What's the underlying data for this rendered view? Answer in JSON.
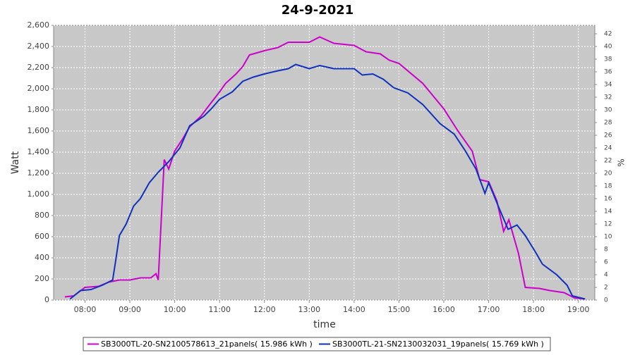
{
  "chart_data": {
    "type": "line",
    "title": "24-9-2021",
    "xlabel": "time",
    "ylabel": "Watt",
    "y2label": "%",
    "xlim": [
      "07:18",
      "19:22"
    ],
    "xticks": [
      "08:00",
      "09:00",
      "10:00",
      "11:00",
      "12:00",
      "13:00",
      "14:00",
      "15:00",
      "16:00",
      "17:00",
      "18:00",
      "19:00"
    ],
    "ylim": [
      0,
      2600
    ],
    "yticks": [
      0,
      200,
      400,
      600,
      800,
      {
        "value": 1000,
        "label": "1,000"
      },
      {
        "value": 1200,
        "label": "1,200"
      },
      {
        "value": 1400,
        "label": "1,400"
      },
      {
        "value": 1600,
        "label": "1,600"
      },
      {
        "value": 1800,
        "label": "1,800"
      },
      {
        "value": 2000,
        "label": "2,000"
      },
      {
        "value": 2200,
        "label": "2,200"
      },
      {
        "value": 2400,
        "label": "2,400"
      },
      {
        "value": 2600,
        "label": "2,600"
      }
    ],
    "y2lim": [
      0,
      43.33
    ],
    "y2ticks": [
      0,
      2,
      4,
      6,
      8,
      10,
      12,
      14,
      16,
      18,
      20,
      22,
      24,
      26,
      28,
      30,
      32,
      34,
      36,
      38,
      40,
      42
    ],
    "grid": true,
    "legend": "bottom",
    "series": [
      {
        "name": "SB3000TL-20-SN2100578613_21panels( 15.986 kWh )",
        "color": "#cc00cc",
        "x": [
          "07:33",
          "07:45",
          "08:00",
          "08:18",
          "08:32",
          "08:46",
          "09:00",
          "09:14",
          "09:28",
          "09:35",
          "09:38",
          "09:46",
          "09:52",
          "10:00",
          "10:11",
          "10:20",
          "10:35",
          "10:49",
          "11:00",
          "11:08",
          "11:22",
          "11:31",
          "11:40",
          "12:00",
          "12:18",
          "12:32",
          "13:00",
          "13:14",
          "13:33",
          "14:00",
          "14:16",
          "14:35",
          "14:47",
          "15:00",
          "15:32",
          "16:00",
          "16:19",
          "16:38",
          "16:48",
          "17:00",
          "17:11",
          "17:20",
          "17:27",
          "17:40",
          "17:49",
          "18:08",
          "18:22",
          "18:41",
          "18:55",
          "19:09"
        ],
        "values": [
          30,
          40,
          120,
          130,
          170,
          190,
          190,
          210,
          210,
          250,
          190,
          1330,
          1240,
          1410,
          1530,
          1640,
          1740,
          1870,
          1970,
          2050,
          2140,
          2210,
          2320,
          2360,
          2390,
          2440,
          2440,
          2490,
          2430,
          2410,
          2350,
          2330,
          2270,
          2240,
          2050,
          1810,
          1600,
          1410,
          1140,
          1120,
          940,
          650,
          760,
          440,
          120,
          110,
          90,
          70,
          20,
          10
        ]
      },
      {
        "name": "SB3000TL-21-SN2130032031_19panels( 15.769 kWh )",
        "color": "#1030c0",
        "x": [
          "07:40",
          "07:54",
          "08:08",
          "08:23",
          "08:37",
          "08:41",
          "08:46",
          "08:55",
          "09:05",
          "09:14",
          "09:26",
          "09:38",
          "09:52",
          "10:07",
          "10:20",
          "10:39",
          "10:49",
          "11:00",
          "11:17",
          "11:31",
          "11:45",
          "12:00",
          "12:18",
          "12:32",
          "12:42",
          "13:00",
          "13:14",
          "13:33",
          "14:00",
          "14:11",
          "14:25",
          "14:39",
          "14:53",
          "15:12",
          "15:32",
          "15:55",
          "16:14",
          "16:29",
          "16:43",
          "16:55",
          "17:00",
          "17:14",
          "17:26",
          "17:38",
          "17:49",
          "18:03",
          "18:12",
          "18:31",
          "18:45",
          "18:52",
          "19:09"
        ],
        "values": [
          10,
          90,
          100,
          140,
          190,
          370,
          610,
          720,
          890,
          960,
          1110,
          1210,
          1310,
          1440,
          1650,
          1740,
          1810,
          1900,
          1970,
          2070,
          2110,
          2140,
          2170,
          2190,
          2230,
          2190,
          2220,
          2190,
          2190,
          2130,
          2140,
          2090,
          2010,
          1960,
          1850,
          1670,
          1570,
          1410,
          1240,
          1010,
          1110,
          870,
          670,
          710,
          610,
          450,
          340,
          240,
          140,
          40,
          10
        ]
      }
    ]
  }
}
